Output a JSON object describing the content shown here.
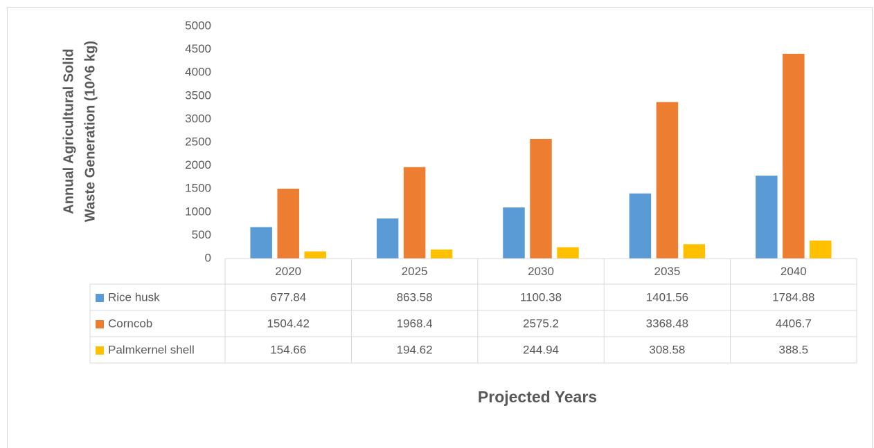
{
  "chart_data": {
    "type": "bar",
    "y_label": [
      "Annual Agricultural Solid",
      "Waste Generation (10^6 kg)"
    ],
    "x_label": "Projected Years",
    "categories": [
      "2020",
      "2025",
      "2030",
      "2035",
      "2040"
    ],
    "series": [
      {
        "name": "Rice husk",
        "color": "#5b9bd5",
        "values": [
          677.84,
          863.58,
          1100.38,
          1401.56,
          1784.88
        ]
      },
      {
        "name": "Corncob",
        "color": "#ed7d31",
        "values": [
          1504.42,
          1968.4,
          2575.2,
          3368.48,
          4406.7
        ]
      },
      {
        "name": "Palmkernel shell",
        "color": "#ffc000",
        "values": [
          154.66,
          194.62,
          244.94,
          308.58,
          388.5
        ]
      }
    ],
    "ylim": [
      0,
      5000
    ],
    "yticks": [
      0,
      500,
      1000,
      1500,
      2000,
      2500,
      3000,
      3500,
      4000,
      4500,
      5000
    ],
    "grid": false,
    "data_table": true
  }
}
